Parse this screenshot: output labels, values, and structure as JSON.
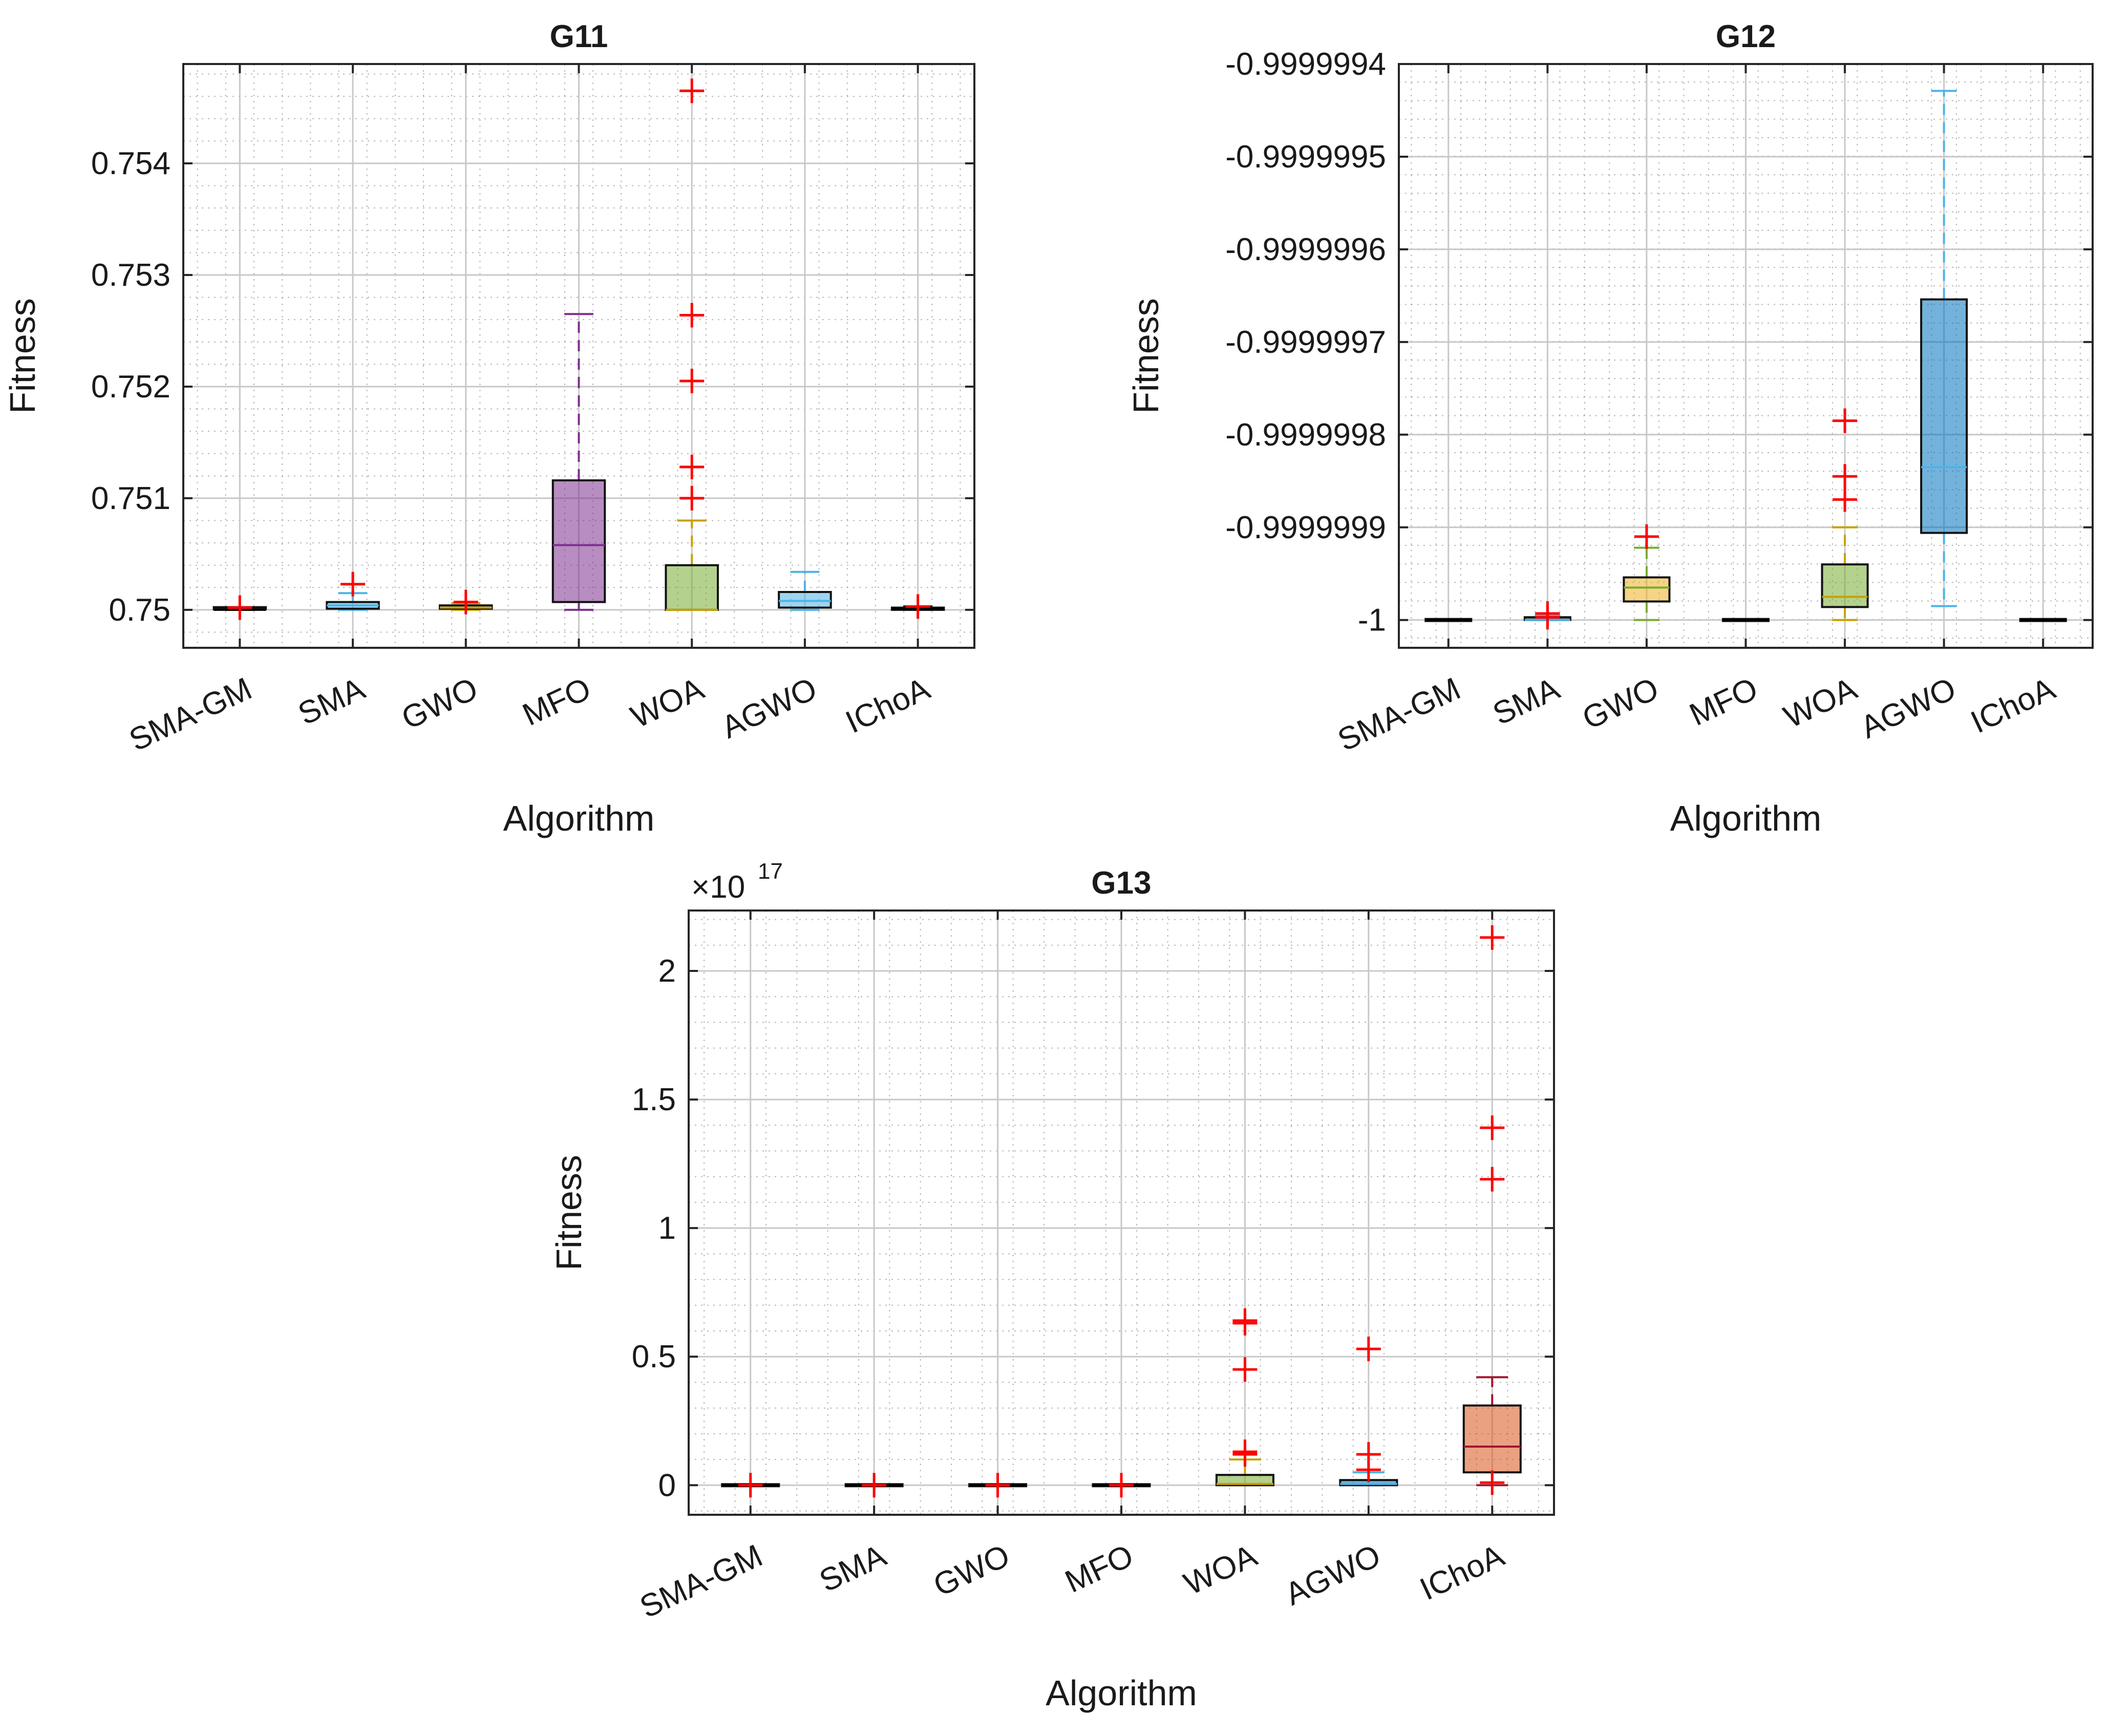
{
  "figure": {
    "xlabel": "Algorithm",
    "ylabel": "Fitness"
  },
  "chart_data": [
    {
      "type": "boxplot",
      "title": "G11",
      "xlabel": "Algorithm",
      "ylabel": "Fitness",
      "categories": [
        "SMA-GM",
        "SMA",
        "GWO",
        "MFO",
        "WOA",
        "AGWO",
        "IChoA"
      ],
      "ylim": [
        0.74966,
        0.75489
      ],
      "yticks": [
        0.75,
        0.751,
        0.752,
        0.753,
        0.754
      ],
      "ytick_labels": [
        "0.75",
        "0.751",
        "0.752",
        "0.753",
        "0.754"
      ],
      "exponent_label": "",
      "colors": [
        "#000000",
        "#4db3e6",
        "#c8a000",
        "#7e2f8e",
        "#77ac30",
        "#4db3e6",
        "#d95319"
      ],
      "boxes": [
        {
          "name": "SMA-GM",
          "color": "#000000",
          "fill": "#1a1a1a",
          "whisker_low": 0.75,
          "q1": 0.75,
          "median": 0.75,
          "q3": 0.750015,
          "whisker_high": 0.75002,
          "outliers": [
            0.75002
          ]
        },
        {
          "name": "SMA",
          "color": "#4db3e6",
          "fill": "#4db3e6",
          "whisker_low": 0.75,
          "q1": 0.75001,
          "median": 0.75004,
          "q3": 0.75007,
          "whisker_high": 0.75015,
          "outliers": [
            0.75023
          ]
        },
        {
          "name": "GWO",
          "color": "#c8a000",
          "fill": "#808080",
          "whisker_low": 0.75,
          "q1": 0.75001,
          "median": 0.75002,
          "q3": 0.75004,
          "whisker_high": 0.75006,
          "outliers": [
            0.75007
          ]
        },
        {
          "name": "MFO",
          "color": "#7e2f8e",
          "fill": "#7e2f8e",
          "whisker_low": 0.75,
          "q1": 0.75007,
          "median": 0.75058,
          "q3": 0.75116,
          "whisker_high": 0.75265,
          "outliers": []
        },
        {
          "name": "WOA",
          "color": "#c8a000",
          "fill": "#77ac30",
          "whisker_low": 0.75,
          "q1": 0.75,
          "median": 0.75,
          "q3": 0.7504,
          "whisker_high": 0.7508,
          "outliers": [
            0.751,
            0.75128,
            0.75205,
            0.75264,
            0.75465
          ]
        },
        {
          "name": "AGWO",
          "color": "#4db3e6",
          "fill": "#4db3e6",
          "whisker_low": 0.75,
          "q1": 0.75002,
          "median": 0.75008,
          "q3": 0.75016,
          "whisker_high": 0.75034,
          "outliers": []
        },
        {
          "name": "IChoA",
          "color": "#000000",
          "fill": "#1a1a1a",
          "whisker_low": 0.75,
          "q1": 0.75,
          "median": 0.75001,
          "q3": 0.75002,
          "whisker_high": 0.75003,
          "outliers": [
            0.75003
          ]
        }
      ]
    },
    {
      "type": "boxplot",
      "title": "G12",
      "xlabel": "Algorithm",
      "ylabel": "Fitness",
      "categories": [
        "SMA-GM",
        "SMA",
        "GWO",
        "MFO",
        "WOA",
        "AGWO",
        "IChoA"
      ],
      "ylim": [
        -1.00000003,
        -0.9999994
      ],
      "yticks": [
        -1,
        -0.9999999,
        -0.9999998,
        -0.9999997,
        -0.9999996,
        -0.9999995,
        -0.9999994
      ],
      "ytick_labels": [
        "-1",
        "-0.9999999",
        "-0.9999998",
        "-0.9999997",
        "-0.9999996",
        "-0.9999995",
        "-0.9999994"
      ],
      "exponent_label": "",
      "boxes": [
        {
          "name": "SMA-GM",
          "color": "#000000",
          "fill": "#1a1a1a",
          "whisker_low": -1,
          "q1": -1,
          "median": -1,
          "q3": -1,
          "whisker_high": -1,
          "outliers": []
        },
        {
          "name": "SMA",
          "color": "#4db3e6",
          "fill": "#1a1a1a",
          "whisker_low": -1,
          "q1": -1,
          "median": -1,
          "q3": -0.999999997,
          "whisker_high": -0.999999995,
          "outliers": [
            -0.999999997,
            -0.999999993
          ]
        },
        {
          "name": "GWO",
          "color": "#77ac30",
          "fill": "#edb120",
          "whisker_low": -1,
          "q1": -0.99999998,
          "median": -0.999999965,
          "q3": -0.999999954,
          "whisker_high": -0.999999922,
          "outliers": [
            -0.99999991
          ]
        },
        {
          "name": "MFO",
          "color": "#000000",
          "fill": "#1a1a1a",
          "whisker_low": -1,
          "q1": -1,
          "median": -1,
          "q3": -1,
          "whisker_high": -1,
          "outliers": []
        },
        {
          "name": "WOA",
          "color": "#c8a000",
          "fill": "#77ac30",
          "whisker_low": -1,
          "q1": -0.999999986,
          "median": -0.999999975,
          "q3": -0.99999994,
          "whisker_high": -0.9999999,
          "outliers": [
            -0.99999987,
            -0.999999845,
            -0.999999785
          ]
        },
        {
          "name": "AGWO",
          "color": "#4db3e6",
          "fill": "#0072bd",
          "whisker_low": -0.999999985,
          "q1": -0.999999906,
          "median": -0.999999835,
          "q3": -0.999999654,
          "whisker_high": -0.999999429,
          "outliers": []
        },
        {
          "name": "IChoA",
          "color": "#000000",
          "fill": "#1a1a1a",
          "whisker_low": -1,
          "q1": -1,
          "median": -1,
          "q3": -1,
          "whisker_high": -1,
          "outliers": []
        }
      ]
    },
    {
      "type": "boxplot",
      "title": "G13",
      "xlabel": "Algorithm",
      "ylabel": "Fitness",
      "categories": [
        "SMA-GM",
        "SMA",
        "GWO",
        "MFO",
        "WOA",
        "AGWO",
        "IChoA"
      ],
      "ylim": [
        -0.115,
        2.235
      ],
      "yticks": [
        0,
        0.5,
        1,
        1.5,
        2
      ],
      "ytick_labels": [
        "0",
        "0.5",
        "1",
        "1.5",
        "2"
      ],
      "exponent_label": "×10",
      "exponent_power": "17",
      "boxes": [
        {
          "name": "SMA-GM",
          "color": "#000000",
          "fill": "#1a1a1a",
          "whisker_low": 0,
          "q1": 0,
          "median": 0,
          "q3": 0,
          "whisker_high": 0,
          "outliers": [
            0
          ]
        },
        {
          "name": "SMA",
          "color": "#000000",
          "fill": "#1a1a1a",
          "whisker_low": 0,
          "q1": 0,
          "median": 0,
          "q3": 0,
          "whisker_high": 0,
          "outliers": [
            0
          ]
        },
        {
          "name": "GWO",
          "color": "#000000",
          "fill": "#1a1a1a",
          "whisker_low": 0,
          "q1": 0,
          "median": 0,
          "q3": 0,
          "whisker_high": 0,
          "outliers": [
            0
          ]
        },
        {
          "name": "MFO",
          "color": "#000000",
          "fill": "#1a1a1a",
          "whisker_low": 0,
          "q1": 0,
          "median": 0,
          "q3": 0,
          "whisker_high": 0,
          "outliers": [
            0
          ]
        },
        {
          "name": "WOA",
          "color": "#c8a000",
          "fill": "#77ac30",
          "whisker_low": 0,
          "q1": 0,
          "median": 0.005,
          "q3": 0.04,
          "whisker_high": 0.1,
          "outliers": [
            0.12,
            0.13,
            0.45,
            0.63,
            0.64
          ]
        },
        {
          "name": "AGWO",
          "color": "#4db3e6",
          "fill": "#0072bd",
          "whisker_low": 0,
          "q1": 0,
          "median": 0.005,
          "q3": 0.02,
          "whisker_high": 0.05,
          "outliers": [
            0.06,
            0.12,
            0.53
          ]
        },
        {
          "name": "IChoA",
          "color": "#a2142f",
          "fill": "#d95319",
          "whisker_low": 0,
          "q1": 0.05,
          "median": 0.15,
          "q3": 0.31,
          "whisker_high": 0.42,
          "outliers": [
            0.01,
            1.19,
            1.39,
            2.13
          ]
        }
      ]
    }
  ]
}
